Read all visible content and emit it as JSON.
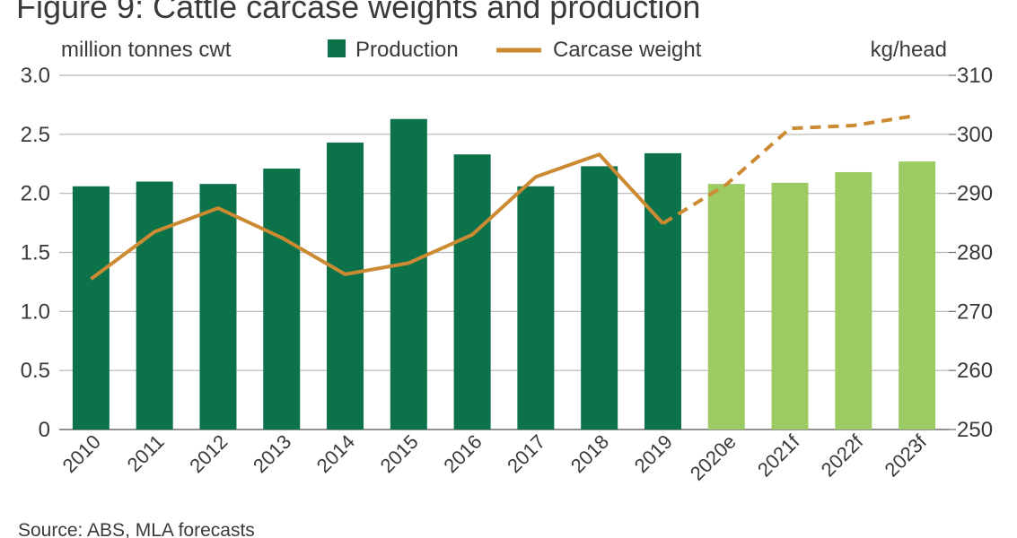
{
  "chart_data": {
    "type": "bar",
    "title": "Figure 9: Cattle carcase weights and production",
    "source": "Source: ABS, MLA forecasts",
    "ylabel_left": "million tonnes cwt",
    "ylabel_right": "kg/head",
    "ylim_left": [
      0,
      3.0
    ],
    "ylim_right": [
      250,
      310
    ],
    "yticks_left": [
      "0",
      "0.5",
      "1.0",
      "1.5",
      "2.0",
      "2.5",
      "3.0"
    ],
    "yticks_right": [
      "250",
      "260",
      "270",
      "280",
      "290",
      "300",
      "310"
    ],
    "grid": true,
    "legend_position": "top",
    "categories": [
      "2010",
      "2011",
      "2012",
      "2013",
      "2014",
      "2015",
      "2016",
      "2017",
      "2018",
      "2019",
      "2020e",
      "2021f",
      "2022f",
      "2023f"
    ],
    "series": [
      {
        "name": "Production",
        "type": "bar",
        "axis": "left",
        "color": "#0b724a",
        "forecast_color": "#9ccb63",
        "values": [
          2.06,
          2.1,
          2.08,
          2.21,
          2.43,
          2.63,
          2.33,
          2.06,
          2.23,
          2.34,
          2.08,
          2.09,
          2.18,
          2.27
        ]
      },
      {
        "name": "Carcase weight",
        "type": "line",
        "axis": "right",
        "color": "#cc8a33",
        "forecast_style": "dashed",
        "values": [
          275.5,
          283.5,
          287.5,
          282.5,
          276.3,
          278.2,
          283.0,
          292.8,
          296.6,
          284.9,
          291.5,
          301.0,
          301.5,
          303.2
        ]
      }
    ],
    "forecast_from_index": 10
  }
}
